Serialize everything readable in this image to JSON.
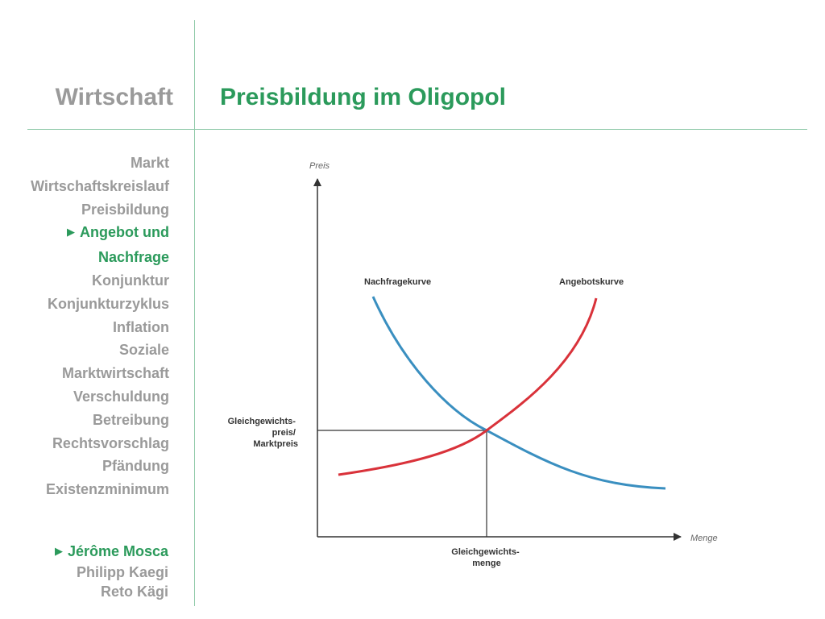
{
  "header": {
    "section_title": "Wirtschaft",
    "page_title": "Preisbildung im Oligopol"
  },
  "nav": {
    "items": [
      {
        "label": "Markt",
        "active": false
      },
      {
        "label": "Wirtschaftskreislauf",
        "active": false
      },
      {
        "label": "Preisbildung",
        "active": false
      },
      {
        "label": "Angebot und",
        "active": true,
        "marker": "▶"
      },
      {
        "label": "Nachfrage",
        "active": true
      },
      {
        "label": "Konjunktur",
        "active": false
      },
      {
        "label": "Konjunkturzyklus",
        "active": false
      },
      {
        "label": "Inflation",
        "active": false
      },
      {
        "label": "Soziale",
        "active": false
      },
      {
        "label": "Marktwirtschaft",
        "active": false
      },
      {
        "label": "Verschuldung",
        "active": false
      },
      {
        "label": "Betreibung",
        "active": false
      },
      {
        "label": "Rechtsvorschlag",
        "active": false
      },
      {
        "label": "Pfändung",
        "active": false
      },
      {
        "label": "Existenzminimum",
        "active": false
      }
    ]
  },
  "authors": [
    {
      "name": "Jérôme Mosca",
      "active": true,
      "marker": "▶"
    },
    {
      "name": "Philipp Kaegi",
      "active": false
    },
    {
      "name": "Reto Kägi",
      "active": false
    }
  ],
  "diagram": {
    "y_axis_label": "Preis",
    "x_axis_label": "Menge",
    "demand_label": "Nachfragekurve",
    "supply_label": "Angebotskurve",
    "price_label_lines": [
      "Gleichgewichts-",
      "preis/",
      "Marktpreis"
    ],
    "quantity_label_lines": [
      "Gleichgewichts-",
      "menge"
    ],
    "colors": {
      "demand": "#3a8fc0",
      "supply": "#d9323a",
      "axis": "#333333",
      "accent": "#2b9a5b",
      "muted": "#9a9a9a",
      "rule": "#8ec9a8"
    }
  }
}
